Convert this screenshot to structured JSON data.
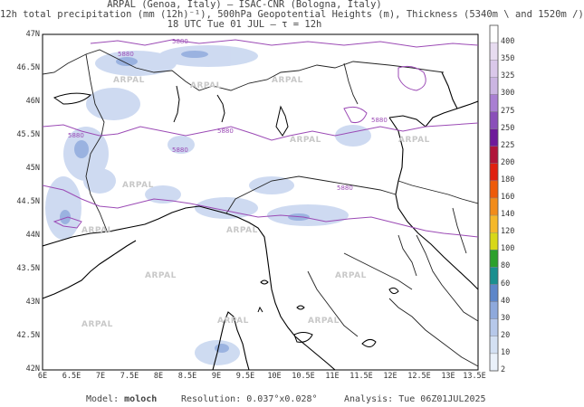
{
  "header": {
    "line1": "ARPAL (Genoa, Italy)  –  ISAC-CNR (Bologna, Italy)",
    "line2": "12h total precipitation (mm (12h)⁻¹), 500hPa Geopotential Heights (m), Thickness (5340m \\ and 1520m /)",
    "line3": "18 UTC Tue 01 JUL   –  τ = 12h"
  },
  "axes": {
    "y_ticks": [
      "47N",
      "46.5N",
      "46N",
      "45.5N",
      "45N",
      "44.5N",
      "44N",
      "43.5N",
      "43N",
      "42.5N",
      "42N"
    ],
    "x_ticks": [
      "6E",
      "6.5E",
      "7E",
      "7.5E",
      "8E",
      "8.5E",
      "9E",
      "9.5E",
      "10E",
      "10.5E",
      "11E",
      "11.5E",
      "12E",
      "12.5E",
      "13E",
      "13.5E"
    ]
  },
  "colorbar": {
    "labels": [
      "400",
      "350",
      "325",
      "300",
      "275",
      "250",
      "225",
      "200",
      "180",
      "160",
      "140",
      "120",
      "100",
      "80",
      "60",
      "40",
      "30",
      "20",
      "10",
      "2"
    ],
    "colors": [
      "#ffffff",
      "#e7dcf0",
      "#dac8ea",
      "#cbb5e2",
      "#a97fd2",
      "#8a4fb9",
      "#6e1a9a",
      "#b0153a",
      "#e02010",
      "#ee5a0a",
      "#f28c1a",
      "#f5b82a",
      "#d8d818",
      "#2ca02c",
      "#1a8f8f",
      "#5d86c9",
      "#8ea9dc",
      "#b6c8ea",
      "#d3e0f3",
      "#eaf1fa"
    ]
  },
  "contour_labels": [
    "5880",
    "5880",
    "5880",
    "5880",
    "5880",
    "5880",
    "5880"
  ],
  "watermark": "ARPAL",
  "footer": {
    "model_label": "Model:",
    "model_value": "moloch",
    "resolution_label": "Resolution:",
    "resolution_value": "0.037°x0.028°",
    "analysis_label": "Analysis:",
    "analysis_value": "Tue 06Z01JUL2025"
  },
  "style": {
    "geopotential_color": "#9b4ab5",
    "coast_color": "#000000",
    "precip_light": "#b6c8ea"
  }
}
